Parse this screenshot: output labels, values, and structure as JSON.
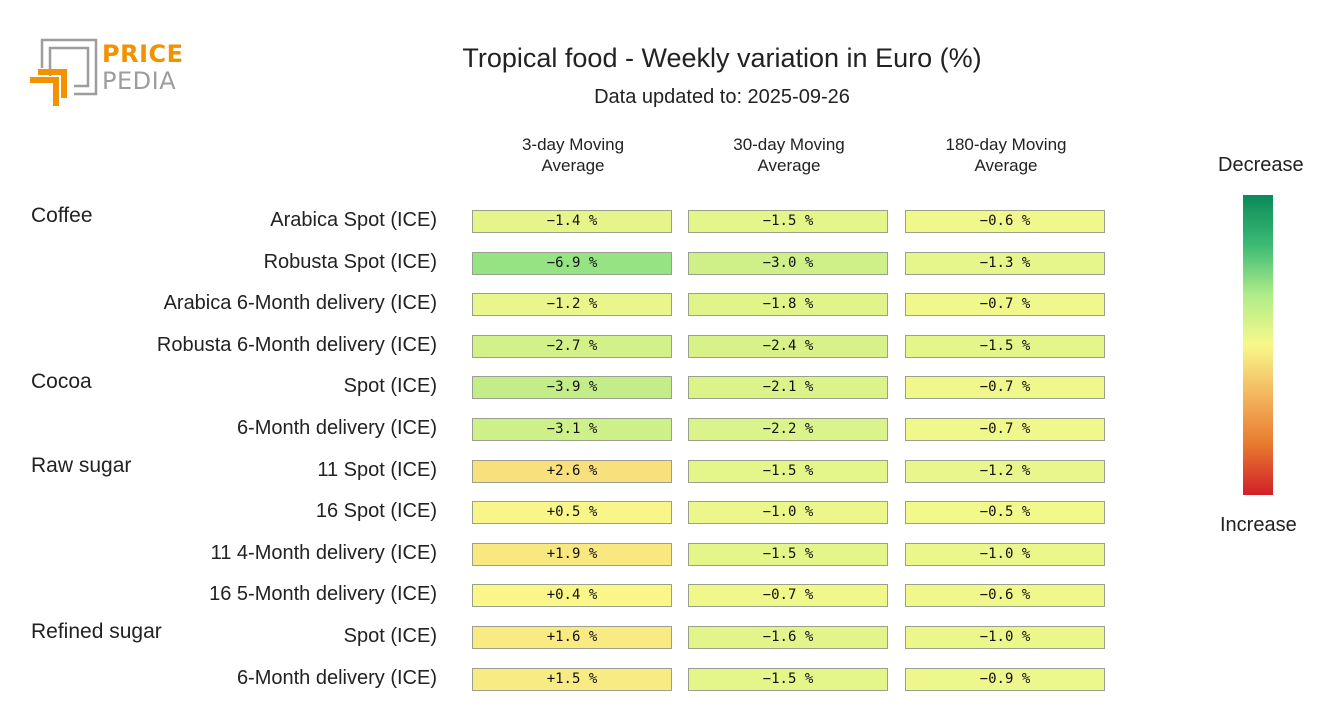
{
  "logo": {
    "line1": "PRICE",
    "line2": "PEDIA",
    "colors": {
      "orange": "#f39200",
      "gray": "#9d9d9c"
    }
  },
  "title": "Tropical food - Weekly variation in Euro (%)",
  "subtitle": "Data updated to: 2025-09-26",
  "legend": {
    "top_label": "Decrease",
    "bottom_label": "Increase",
    "gradient_colors": [
      "#0a8a5a",
      "#3cba74",
      "#b0ec8a",
      "#f8f88a",
      "#f3b65e",
      "#e8792e",
      "#d11f2a"
    ]
  },
  "chart_data": {
    "type": "heatmap",
    "title": "Tropical food - Weekly variation in Euro (%)",
    "subtitle": "Data updated to: 2025-09-26",
    "columns": [
      "3-day Moving\nAverage",
      "30-day Moving\nAverage",
      "180-day Moving\nAverage"
    ],
    "unit": "%",
    "groups": [
      {
        "name": "Coffee",
        "rows": [
          {
            "label": "Arabica Spot (ICE)",
            "values": [
              -1.4,
              -1.5,
              -0.6
            ],
            "display": [
              "−1.4 %",
              "−1.5 %",
              "−0.6 %"
            ]
          },
          {
            "label": "Robusta Spot (ICE)",
            "values": [
              -6.9,
              -3.0,
              -1.3
            ],
            "display": [
              "−6.9 %",
              "−3.0 %",
              "−1.3 %"
            ]
          },
          {
            "label": "Arabica 6-Month delivery (ICE)",
            "values": [
              -1.2,
              -1.8,
              -0.7
            ],
            "display": [
              "−1.2 %",
              "−1.8 %",
              "−0.7 %"
            ]
          },
          {
            "label": "Robusta 6-Month delivery (ICE)",
            "values": [
              -2.7,
              -2.4,
              -1.5
            ],
            "display": [
              "−2.7 %",
              "−2.4 %",
              "−1.5 %"
            ]
          }
        ]
      },
      {
        "name": "Cocoa",
        "rows": [
          {
            "label": "Spot (ICE)",
            "values": [
              -3.9,
              -2.1,
              -0.7
            ],
            "display": [
              "−3.9 %",
              "−2.1 %",
              "−0.7 %"
            ]
          },
          {
            "label": "6-Month delivery (ICE)",
            "values": [
              -3.1,
              -2.2,
              -0.7
            ],
            "display": [
              "−3.1 %",
              "−2.2 %",
              "−0.7 %"
            ]
          }
        ]
      },
      {
        "name": "Raw sugar",
        "rows": [
          {
            "label": "11 Spot (ICE)",
            "values": [
              2.6,
              -1.5,
              -1.2
            ],
            "display": [
              "+2.6 %",
              "−1.5 %",
              "−1.2 %"
            ]
          },
          {
            "label": "16 Spot (ICE)",
            "values": [
              0.5,
              -1.0,
              -0.5
            ],
            "display": [
              "+0.5 %",
              "−1.0 %",
              "−0.5 %"
            ]
          },
          {
            "label": "11 4-Month delivery (ICE)",
            "values": [
              1.9,
              -1.5,
              -1.0
            ],
            "display": [
              "+1.9 %",
              "−1.5 %",
              "−1.0 %"
            ]
          },
          {
            "label": "16 5-Month delivery (ICE)",
            "values": [
              0.4,
              -0.7,
              -0.6
            ],
            "display": [
              "+0.4 %",
              "−0.7 %",
              "−0.6 %"
            ]
          }
        ]
      },
      {
        "name": "Refined sugar",
        "rows": [
          {
            "label": "Spot (ICE)",
            "values": [
              1.6,
              -1.6,
              -1.0
            ],
            "display": [
              "+1.6 %",
              "−1.6 %",
              "−1.0 %"
            ]
          },
          {
            "label": "6-Month delivery (ICE)",
            "values": [
              1.5,
              -1.5,
              -0.9
            ],
            "display": [
              "+1.5 %",
              "−1.5 %",
              "−0.9 %"
            ]
          }
        ]
      }
    ]
  }
}
